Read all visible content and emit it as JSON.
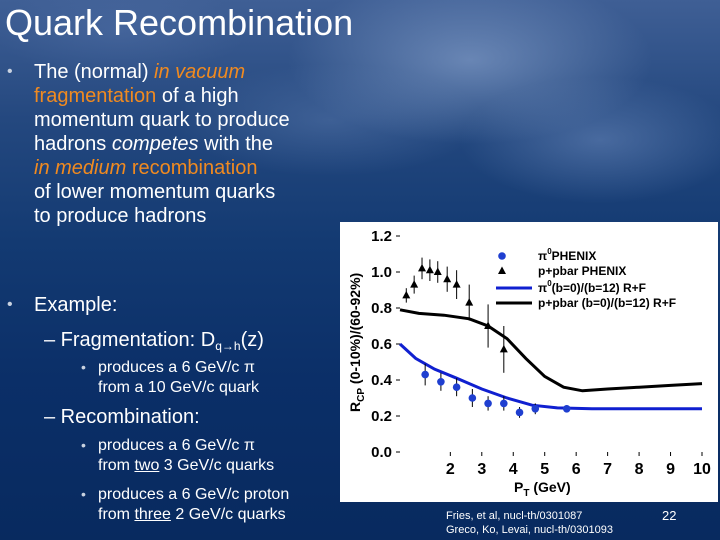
{
  "slide": {
    "title": "Quark Recombination",
    "bullet1": {
      "l1a": "The (normal) ",
      "l1b": "in vacuum",
      "l2a": "fragmentation",
      "l2b": " of a high",
      "l3": "momentum quark to produce",
      "l4a": "hadrons ",
      "l4b": "competes",
      "l4c": " with the",
      "l5a": "in medium",
      "l5b": " recombination",
      "l6": "of lower momentum quarks",
      "l7": "to produce hadrons"
    },
    "bullet2": "Example:",
    "frag_label": "– Fragmentation: D",
    "frag_sub": "q→h",
    "frag_arg": "(z)",
    "frag_item": [
      "produces a 6 GeV/c π",
      "from a 10 GeV/c quark"
    ],
    "recomb_label": "– Recombination:",
    "rec_item1": [
      "produces a 6 GeV/c π",
      "from ",
      "two",
      " 3 GeV/c quarks"
    ],
    "rec_item2": [
      "produces a 6 GeV/c proton",
      "from ",
      "three",
      " 2 GeV/c quarks"
    ],
    "citation": [
      "Fries, et al, nucl-th/0301087",
      "Greco, Ko, Levai, nucl-th/0301093"
    ],
    "page": "22",
    "bullet_glyph": "•"
  },
  "chart_data": {
    "type": "scatter",
    "ylabel_main": "R",
    "ylabel_sub": "CP",
    "ylabel_rest": " (0-10%)/(60-92%)",
    "xlabel_main": "P",
    "xlabel_sub": "T",
    "xlabel_rest": " (GeV)",
    "xlim": [
      0.4,
      10
    ],
    "ylim": [
      0.0,
      1.2
    ],
    "xticks": [
      "2",
      "3",
      "4",
      "5",
      "6",
      "7",
      "8",
      "9",
      "10"
    ],
    "yticks": [
      "0.0",
      "0.2",
      "0.4",
      "0.6",
      "0.8",
      "1.0",
      "1.2"
    ],
    "legend": [
      {
        "sup": "0",
        "name": "PHENIX",
        "base": "π"
      },
      {
        "name": "p+pbar PHENIX"
      },
      {
        "sup": "0",
        "name": "(b=0)/(b=12) R+F",
        "base": "π"
      },
      {
        "name": "p+pbar (b=0)/(b=12) R+F"
      }
    ],
    "series": [
      {
        "name": "PHENIX",
        "marker": "circle",
        "color": "#1f3fd0",
        "points": [
          {
            "x": 1.2,
            "y": 0.43,
            "err": 0.06
          },
          {
            "x": 1.7,
            "y": 0.39,
            "err": 0.05
          },
          {
            "x": 2.2,
            "y": 0.36,
            "err": 0.05
          },
          {
            "x": 2.7,
            "y": 0.3,
            "err": 0.05
          },
          {
            "x": 3.2,
            "y": 0.27,
            "err": 0.04
          },
          {
            "x": 3.7,
            "y": 0.27,
            "err": 0.04
          },
          {
            "x": 4.2,
            "y": 0.22,
            "err": 0.03
          },
          {
            "x": 4.7,
            "y": 0.24,
            "err": 0.03
          },
          {
            "x": 5.7,
            "y": 0.24,
            "err": 0.02
          }
        ]
      },
      {
        "name": "p+pbar PHENIX",
        "marker": "triangle",
        "color": "#000000",
        "points": [
          {
            "x": 0.6,
            "y": 0.87,
            "err": 0.04
          },
          {
            "x": 0.85,
            "y": 0.93,
            "err": 0.05
          },
          {
            "x": 1.1,
            "y": 1.02,
            "err": 0.06
          },
          {
            "x": 1.35,
            "y": 1.01,
            "err": 0.06
          },
          {
            "x": 1.6,
            "y": 1.0,
            "err": 0.06
          },
          {
            "x": 1.9,
            "y": 0.96,
            "err": 0.07
          },
          {
            "x": 2.2,
            "y": 0.93,
            "err": 0.08
          },
          {
            "x": 2.6,
            "y": 0.83,
            "err": 0.1
          },
          {
            "x": 3.2,
            "y": 0.7,
            "err": 0.12
          },
          {
            "x": 3.7,
            "y": 0.57,
            "err": 0.13
          }
        ]
      },
      {
        "name": "(b=0)/(b=12) R+F",
        "kind": "line",
        "color": "#1020d0",
        "points": [
          [
            0.4,
            0.6
          ],
          [
            0.9,
            0.52
          ],
          [
            1.5,
            0.46
          ],
          [
            2.2,
            0.41
          ],
          [
            3.0,
            0.35
          ],
          [
            3.8,
            0.3
          ],
          [
            4.6,
            0.26
          ],
          [
            5.4,
            0.245
          ],
          [
            6.5,
            0.24
          ],
          [
            8.0,
            0.24
          ],
          [
            10.0,
            0.24
          ]
        ]
      },
      {
        "name": "p+pbar (b=0)/(b=12) R+F",
        "kind": "line",
        "color": "#000000",
        "points": [
          [
            0.4,
            0.79
          ],
          [
            1.0,
            0.77
          ],
          [
            1.8,
            0.76
          ],
          [
            2.6,
            0.74
          ],
          [
            3.2,
            0.7
          ],
          [
            3.8,
            0.63
          ],
          [
            4.4,
            0.52
          ],
          [
            5.0,
            0.42
          ],
          [
            5.6,
            0.36
          ],
          [
            6.2,
            0.34
          ],
          [
            7.0,
            0.35
          ],
          [
            8.0,
            0.36
          ],
          [
            9.0,
            0.37
          ],
          [
            10.0,
            0.38
          ]
        ]
      }
    ]
  }
}
